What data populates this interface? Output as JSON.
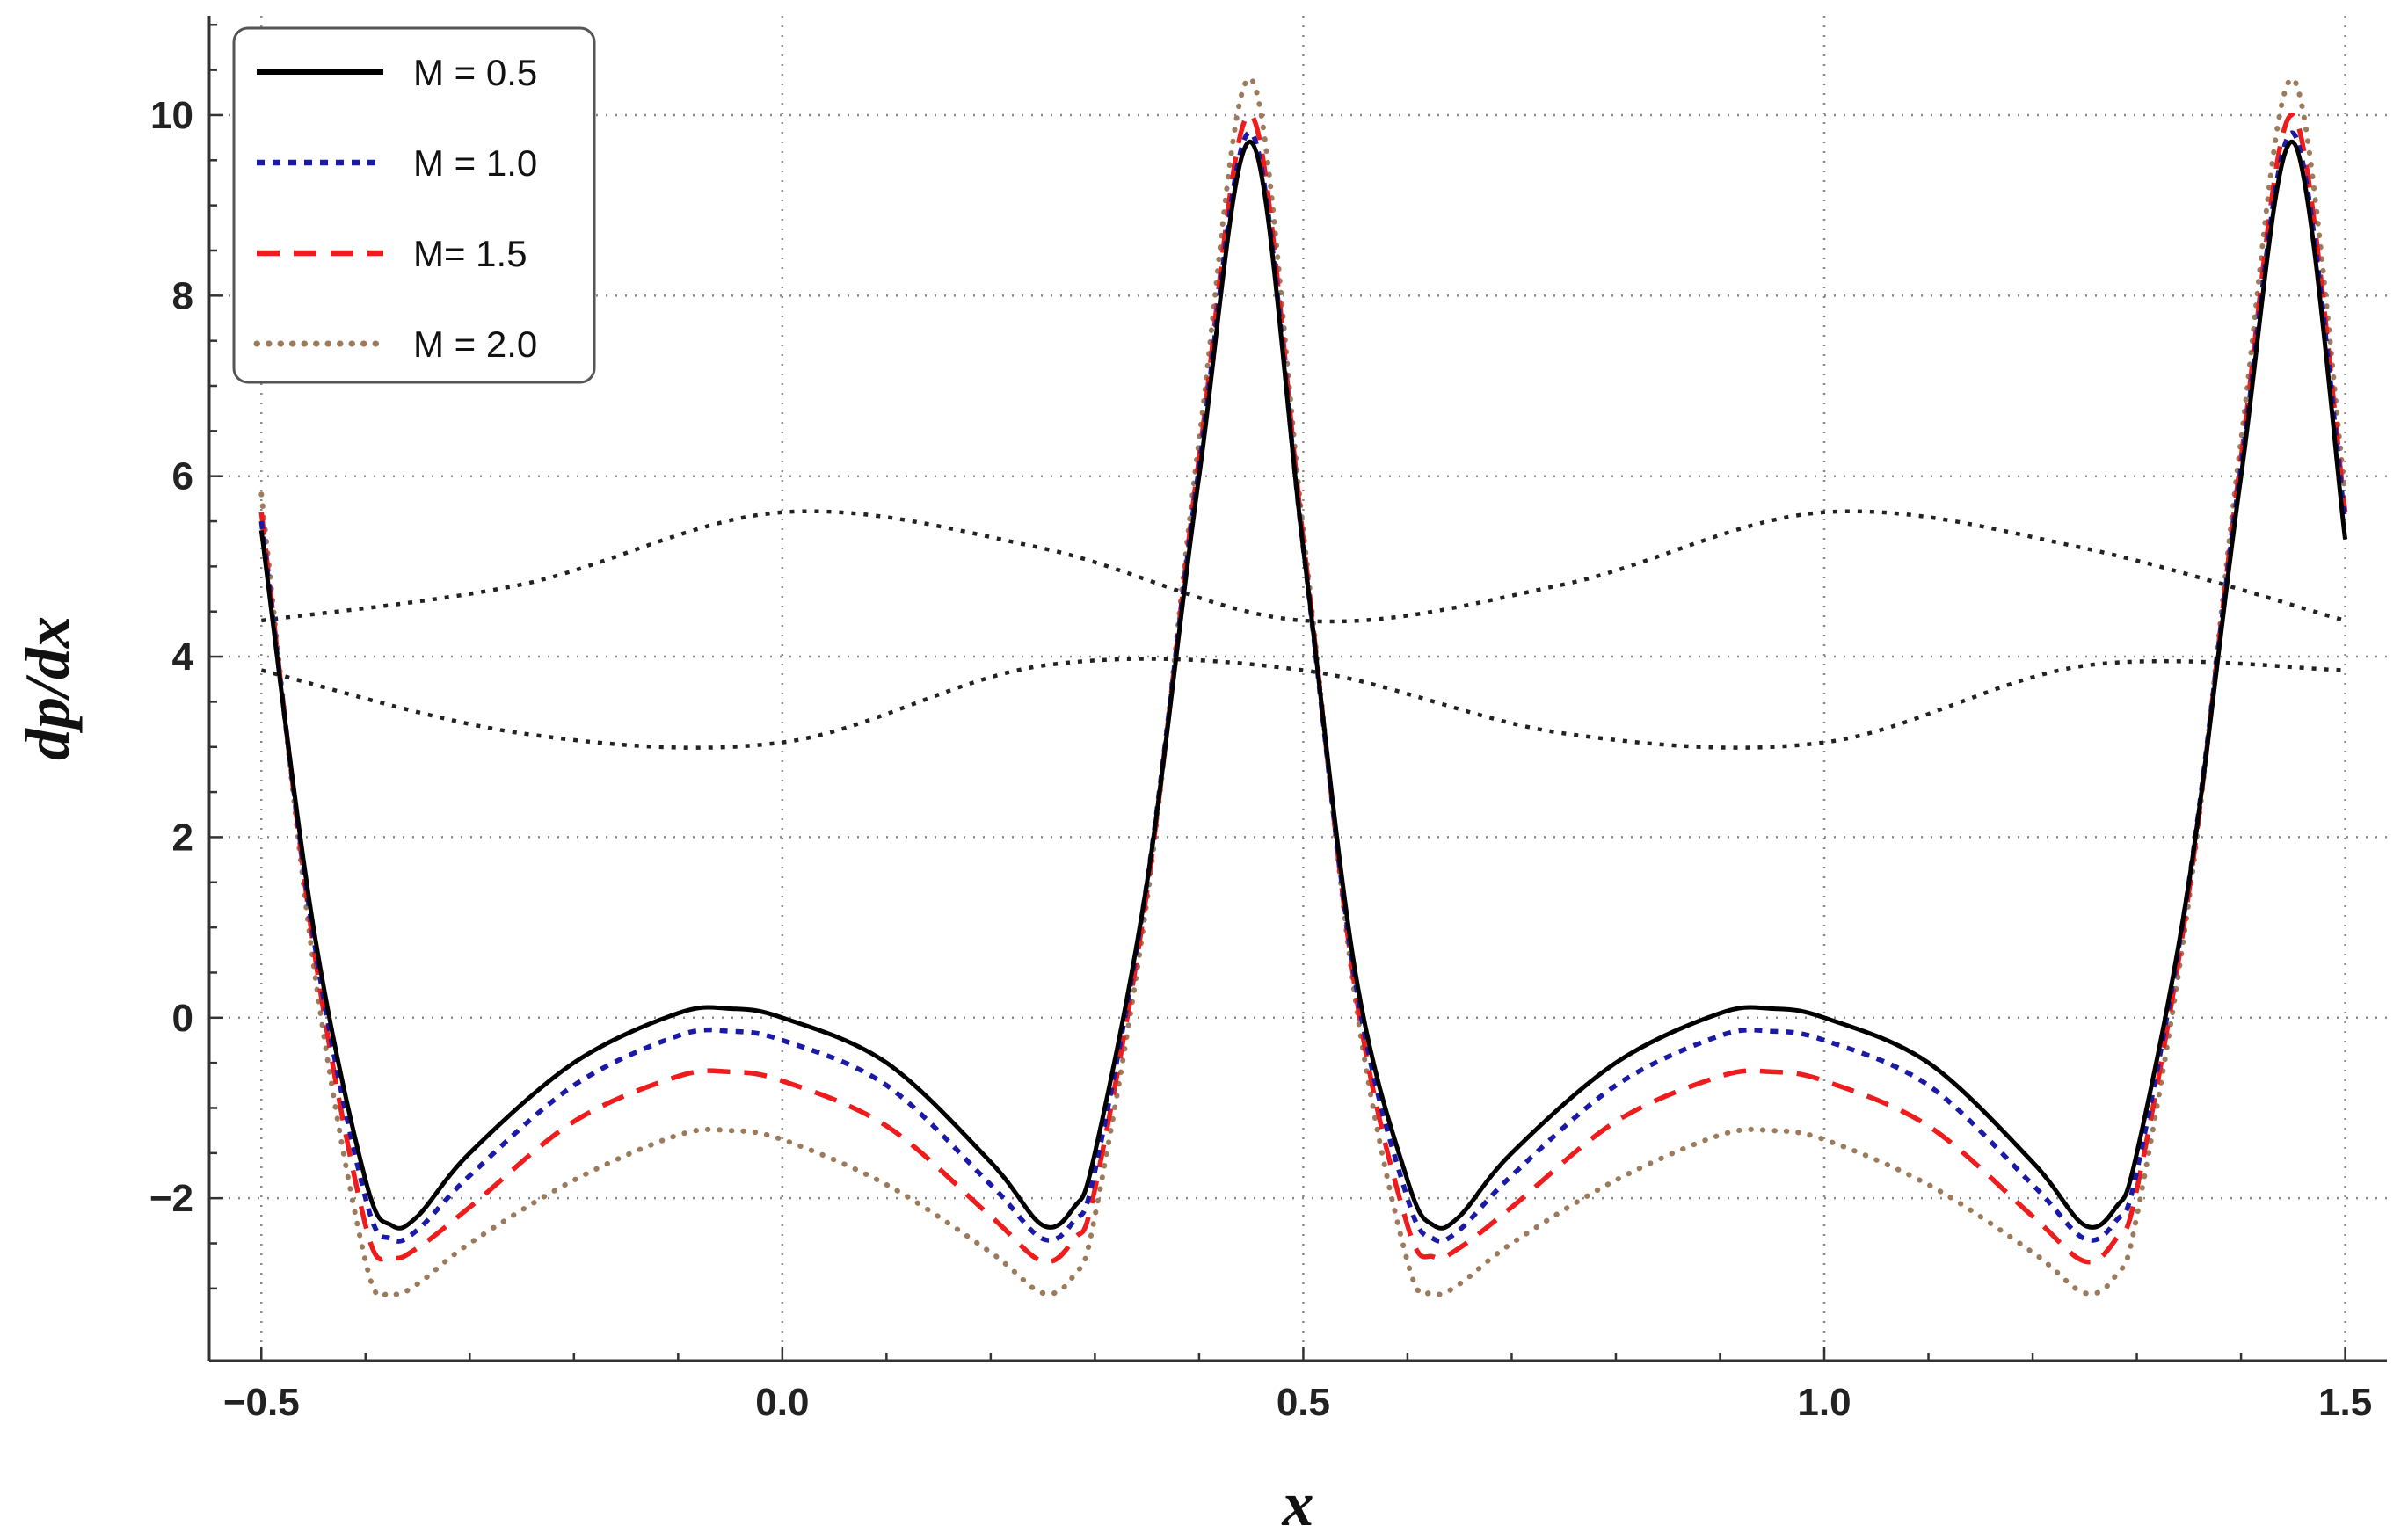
{
  "chart_data": {
    "type": "line",
    "title": "",
    "xlabel": "x",
    "ylabel": "dp/dx",
    "xlim": [
      -0.55,
      1.54
    ],
    "ylim": [
      -3.8,
      11.1
    ],
    "x_ticks": [
      -0.5,
      0.0,
      0.5,
      1.0,
      1.5
    ],
    "x_tick_labels": [
      "−0.5",
      "0.0",
      "0.5",
      "1.0",
      "1.5"
    ],
    "y_ticks": [
      -2,
      0,
      2,
      4,
      6,
      8,
      10
    ],
    "y_tick_labels": [
      "−2",
      "0",
      "2",
      "4",
      "6",
      "8",
      "10"
    ],
    "grid": true,
    "legend_position": "top-left",
    "x": [
      -0.5,
      -0.45,
      -0.4,
      -0.375,
      -0.35,
      -0.3,
      -0.2,
      -0.1,
      -0.05,
      0.0,
      0.1,
      0.2,
      0.25,
      0.28,
      0.3,
      0.35,
      0.4,
      0.45,
      0.5,
      0.55,
      0.6,
      0.625,
      0.65,
      0.7,
      0.8,
      0.9,
      0.95,
      1.0,
      1.1,
      1.2,
      1.25,
      1.28,
      1.3,
      1.35,
      1.4,
      1.45,
      1.5
    ],
    "series": [
      {
        "name": "M = 0.5",
        "color": "#000000",
        "style": "solid",
        "values": [
          5.4,
          1.0,
          -1.8,
          -2.3,
          -2.2,
          -1.5,
          -0.5,
          0.05,
          0.1,
          0.0,
          -0.5,
          -1.6,
          -2.3,
          -2.1,
          -1.5,
          1.5,
          6.0,
          9.7,
          5.2,
          0.5,
          -1.8,
          -2.3,
          -2.2,
          -1.5,
          -0.5,
          0.05,
          0.1,
          0.0,
          -0.5,
          -1.6,
          -2.3,
          -2.1,
          -1.5,
          1.5,
          6.0,
          9.7,
          5.3
        ]
      },
      {
        "name": "M = 1.0",
        "color": "#1a1aa6",
        "style": "dotted",
        "values": [
          5.5,
          0.9,
          -2.0,
          -2.45,
          -2.35,
          -1.75,
          -0.75,
          -0.2,
          -0.15,
          -0.25,
          -0.75,
          -1.85,
          -2.45,
          -2.25,
          -1.7,
          1.5,
          6.1,
          9.8,
          5.2,
          0.4,
          -2.0,
          -2.45,
          -2.35,
          -1.75,
          -0.75,
          -0.2,
          -0.15,
          -0.25,
          -0.75,
          -1.85,
          -2.45,
          -2.25,
          -1.7,
          1.5,
          6.1,
          9.8,
          5.5
        ]
      },
      {
        "name": "M= 1.5",
        "color": "#ee1c1c",
        "style": "dashed",
        "values": [
          5.6,
          0.8,
          -2.3,
          -2.65,
          -2.55,
          -2.1,
          -1.15,
          -0.65,
          -0.6,
          -0.7,
          -1.2,
          -2.2,
          -2.7,
          -2.45,
          -1.9,
          1.4,
          6.2,
          10.0,
          5.3,
          0.3,
          -2.3,
          -2.65,
          -2.55,
          -2.1,
          -1.15,
          -0.65,
          -0.6,
          -0.7,
          -1.2,
          -2.2,
          -2.7,
          -2.45,
          -1.9,
          1.4,
          6.2,
          10.0,
          5.6
        ]
      },
      {
        "name": "M = 2.0",
        "color": "#9b7b5c",
        "style": "dotted-sparse",
        "values": [
          5.8,
          0.6,
          -2.7,
          -3.05,
          -2.95,
          -2.5,
          -1.8,
          -1.3,
          -1.25,
          -1.35,
          -1.85,
          -2.6,
          -3.05,
          -2.85,
          -2.2,
          1.3,
          6.4,
          10.4,
          5.4,
          0.2,
          -2.7,
          -3.05,
          -2.95,
          -2.5,
          -1.8,
          -1.3,
          -1.25,
          -1.35,
          -1.85,
          -2.6,
          -3.05,
          -2.85,
          -2.2,
          1.3,
          6.4,
          10.4,
          5.8
        ]
      }
    ],
    "annotation_curves": [
      {
        "name": "upper-wall",
        "color": "#222222",
        "style": "dotted",
        "x": [
          -0.5,
          -0.25,
          0.0,
          0.25,
          0.5,
          0.75,
          1.0,
          1.25,
          1.5
        ],
        "values": [
          4.4,
          4.8,
          5.6,
          5.2,
          4.4,
          4.8,
          5.6,
          5.2,
          4.4
        ]
      },
      {
        "name": "lower-wall",
        "color": "#222222",
        "style": "dotted",
        "x": [
          -0.5,
          -0.25,
          0.0,
          0.25,
          0.5,
          0.75,
          1.0,
          1.25,
          1.5
        ],
        "values": [
          3.85,
          3.15,
          3.05,
          3.9,
          3.85,
          3.15,
          3.05,
          3.9,
          3.85
        ]
      }
    ]
  }
}
